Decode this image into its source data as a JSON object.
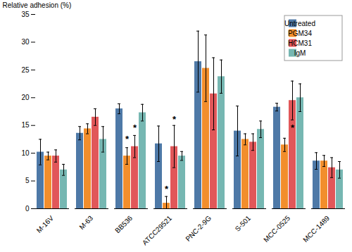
{
  "chart_data": {
    "type": "bar",
    "categories": [
      "M-16V",
      "M-63",
      "BB536",
      "ATCC29521",
      "PNC-2-9G",
      "S-501",
      "MCC-0525",
      "MCC-1489"
    ],
    "series": [
      {
        "name": "Untreated",
        "values": [
          10.2,
          13.6,
          18.0,
          11.7,
          26.5,
          14.0,
          18.3,
          8.6
        ],
        "errors": [
          2.3,
          1.2,
          0.9,
          3.2,
          5.5,
          4.5,
          0.7,
          1.5
        ]
      },
      {
        "name": "PGM34",
        "values": [
          9.5,
          14.4,
          9.5,
          1.0,
          25.3,
          12.5,
          11.5,
          8.6
        ],
        "errors": [
          0.7,
          0.9,
          1.5,
          1.2,
          6.0,
          1.0,
          1.2,
          1.0
        ]
      },
      {
        "name": "HCM31",
        "values": [
          9.5,
          16.5,
          11.2,
          11.2,
          20.7,
          12.0,
          19.5,
          7.4
        ],
        "errors": [
          1.1,
          1.5,
          2.0,
          3.8,
          6.5,
          1.5,
          3.5,
          1.8
        ]
      },
      {
        "name": "IgM",
        "values": [
          7.0,
          12.5,
          17.3,
          9.5,
          23.8,
          14.3,
          20.0,
          7.0
        ],
        "errors": [
          1.0,
          2.3,
          1.5,
          0.8,
          3.0,
          1.5,
          2.5,
          1.5
        ]
      }
    ],
    "annotations": [
      {
        "category": "BB536",
        "series": "PGM34",
        "y": 12.5,
        "text": "*"
      },
      {
        "category": "BB536",
        "series": "HCM31",
        "y": 14.5,
        "text": "*"
      },
      {
        "category": "ATCC29521",
        "series": "PGM34",
        "y": 3.5,
        "text": "*"
      },
      {
        "category": "ATCC29521",
        "series": "HCM31",
        "y": 16.0,
        "text": "*"
      },
      {
        "category": "MCC-0525",
        "series": "HCM31",
        "y": 14.5,
        "text": "*"
      }
    ],
    "ylabel": "Relative adhesion (%)",
    "ylim": [
      0,
      35
    ],
    "yticks": [
      0,
      5,
      10,
      15,
      20,
      25,
      30,
      35
    ],
    "grid": false,
    "legend": "upper right"
  }
}
